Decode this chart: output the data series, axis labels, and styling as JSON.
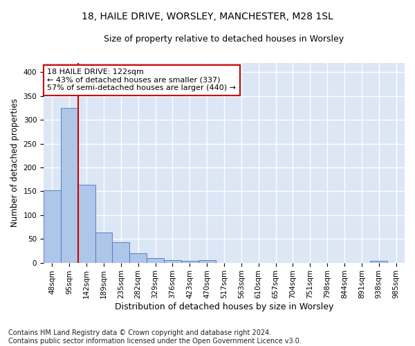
{
  "title1": "18, HAILE DRIVE, WORSLEY, MANCHESTER, M28 1SL",
  "title2": "Size of property relative to detached houses in Worsley",
  "xlabel": "Distribution of detached houses by size in Worsley",
  "ylabel": "Number of detached properties",
  "footnote": "Contains HM Land Registry data © Crown copyright and database right 2024.\nContains public sector information licensed under the Open Government Licence v3.0.",
  "bin_labels": [
    "48sqm",
    "95sqm",
    "142sqm",
    "189sqm",
    "235sqm",
    "282sqm",
    "329sqm",
    "376sqm",
    "423sqm",
    "470sqm",
    "517sqm",
    "563sqm",
    "610sqm",
    "657sqm",
    "704sqm",
    "751sqm",
    "798sqm",
    "844sqm",
    "891sqm",
    "938sqm",
    "985sqm"
  ],
  "bar_heights": [
    152,
    325,
    164,
    64,
    43,
    20,
    10,
    5,
    4,
    5,
    0,
    0,
    0,
    0,
    0,
    0,
    0,
    0,
    0,
    4,
    0
  ],
  "bar_color": "#aec6e8",
  "bar_edge_color": "#4472c4",
  "annotation_box_color": "#cc0000",
  "property_line_x": 1.5,
  "annotation_text_line1": "18 HAILE DRIVE: 122sqm",
  "annotation_text_line2": "← 43% of detached houses are smaller (337)",
  "annotation_text_line3": "57% of semi-detached houses are larger (440) →",
  "ylim": [
    0,
    420
  ],
  "yticks": [
    0,
    50,
    100,
    150,
    200,
    250,
    300,
    350,
    400
  ],
  "background_color": "#dce6f5",
  "grid_color": "#ffffff",
  "title1_fontsize": 10,
  "title2_fontsize": 9,
  "xlabel_fontsize": 9,
  "ylabel_fontsize": 8.5,
  "footnote_fontsize": 7,
  "annotation_fontsize": 8,
  "tick_fontsize": 7.5
}
